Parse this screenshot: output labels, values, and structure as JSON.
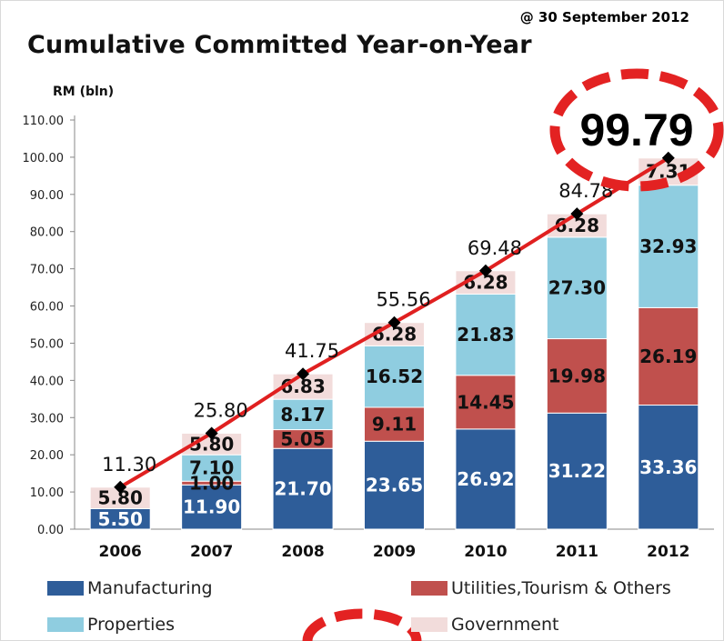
{
  "header": {
    "date": "@ 30 September 2012",
    "title": "Cumulative Committed Year-on-Year",
    "unit": "RM (bln)"
  },
  "highlight": "99.79",
  "colors": {
    "manufacturing": "#2e5d99",
    "utilities": "#c0504d",
    "properties": "#8fcde0",
    "government": "#f2dcdb",
    "line": "#e02020",
    "marker": "#000000",
    "ring": "#e32222"
  },
  "legend": [
    {
      "label": "Manufacturing",
      "color": "#2e5d99"
    },
    {
      "label": "Utilities,Tourism & Others",
      "color": "#c0504d"
    },
    {
      "label": "Properties",
      "color": "#8fcde0"
    },
    {
      "label": "Government",
      "color": "#f2dcdb"
    }
  ],
  "chart_data": {
    "type": "bar",
    "stacked": true,
    "categories": [
      "2006",
      "2007",
      "2008",
      "2009",
      "2010",
      "2011",
      "2012"
    ],
    "ylim": [
      0,
      110
    ],
    "yticks": [
      "0.00",
      "10.00",
      "20.00",
      "30.00",
      "40.00",
      "50.00",
      "60.00",
      "70.00",
      "80.00",
      "90.00",
      "100.00",
      "110.00"
    ],
    "series": [
      {
        "name": "Manufacturing",
        "values": [
          5.5,
          11.9,
          21.7,
          23.65,
          26.92,
          31.22,
          33.36
        ],
        "labels": [
          "5.50",
          "11.90",
          "21.70",
          "23.65",
          "26.92",
          "31.22",
          "33.36"
        ]
      },
      {
        "name": "Utilities,Tourism & Others",
        "values": [
          0,
          1.0,
          5.05,
          9.11,
          14.45,
          19.98,
          26.19
        ],
        "labels": [
          "",
          "1.00",
          "5.05",
          "9.11",
          "14.45",
          "19.98",
          "26.19"
        ]
      },
      {
        "name": "Properties",
        "values": [
          0,
          7.1,
          8.17,
          16.52,
          21.83,
          27.3,
          32.93
        ],
        "labels": [
          "",
          "7.10",
          "8.17",
          "16.52",
          "21.83",
          "27.30",
          "32.93"
        ]
      },
      {
        "name": "Government",
        "values": [
          5.8,
          5.8,
          6.83,
          6.28,
          6.28,
          6.28,
          7.31
        ],
        "labels": [
          "5.80",
          "5.80",
          "6.83",
          "6.28",
          "6.28",
          "6.28",
          "7.31"
        ]
      }
    ],
    "totals": {
      "values": [
        11.3,
        25.8,
        41.75,
        55.56,
        69.48,
        84.78,
        99.79
      ],
      "labels": [
        "11.30",
        "25.80",
        "41.75",
        "55.56",
        "69.48",
        "84.78",
        ""
      ]
    }
  }
}
